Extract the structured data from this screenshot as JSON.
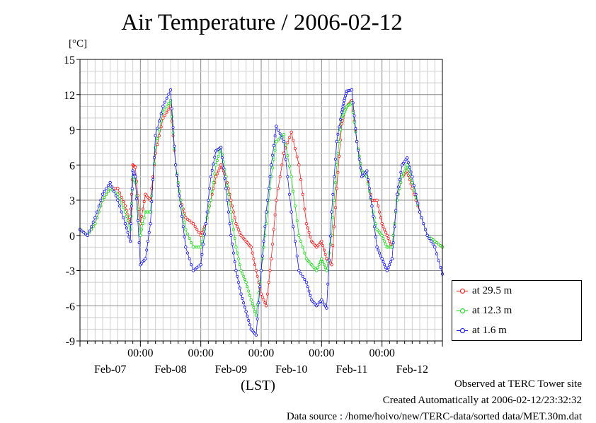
{
  "chart_data": {
    "type": "line",
    "title": "Air Temperature / 2006-02-12",
    "ylabel": "[°C]",
    "xlabel": "(LST)",
    "ylim": [
      -9,
      15
    ],
    "yticks": [
      15,
      12,
      9,
      6,
      3,
      0,
      -3,
      -6,
      -9
    ],
    "xlim_hours": [
      0,
      144
    ],
    "time_labels": [
      "00:00",
      "00:00",
      "00:00",
      "00:00",
      "00:00"
    ],
    "date_labels": [
      "Feb-07",
      "Feb-08",
      "Feb-09",
      "Feb-10",
      "Feb-11",
      "Feb-12"
    ],
    "grid": true,
    "legend_position": "bottom-right",
    "colors": {
      "at 29.5 m": "#ff0000",
      "at 12.3 m": "#00dd00",
      "at 1.6 m": "#0000ff"
    },
    "series": [
      {
        "name": "at 29.5 m",
        "x": [
          0,
          3,
          6,
          9,
          12,
          15,
          18,
          20,
          21,
          22,
          24,
          26,
          28,
          30,
          33,
          36,
          38,
          40,
          42,
          45,
          48,
          50,
          52,
          54,
          56,
          58,
          60,
          62,
          64,
          66,
          68,
          70,
          72,
          74,
          76,
          78,
          81,
          84,
          87,
          90,
          92,
          94,
          96,
          98,
          100,
          102,
          104,
          105,
          106,
          108,
          110,
          112,
          114,
          116,
          118,
          120,
          122,
          124,
          126,
          128,
          130,
          132,
          135,
          138,
          141,
          144
        ],
        "y": [
          0.5,
          0,
          1,
          3,
          4,
          4,
          2.5,
          1,
          6,
          5.8,
          1,
          3.5,
          3,
          7,
          10,
          11,
          6,
          3,
          1.5,
          1,
          0,
          1,
          3,
          5,
          6,
          5,
          3,
          1,
          0,
          -0.5,
          -1,
          -3,
          -5,
          -6,
          -2,
          3,
          7,
          8.8,
          6,
          1,
          -0.5,
          -1,
          -0.5,
          -2,
          -2.5,
          4,
          9.5,
          10.5,
          11,
          11.5,
          8,
          5.5,
          5,
          3,
          3,
          1,
          0,
          -1,
          3,
          5,
          5.5,
          4,
          2,
          0,
          -0.5,
          -1
        ]
      },
      {
        "name": "at 12.3 m",
        "x": [
          0,
          3,
          6,
          9,
          12,
          15,
          18,
          20,
          21,
          22,
          24,
          26,
          28,
          30,
          33,
          36,
          38,
          40,
          42,
          45,
          48,
          50,
          52,
          54,
          56,
          58,
          60,
          62,
          64,
          66,
          68,
          70,
          72,
          74,
          76,
          78,
          81,
          84,
          87,
          90,
          92,
          94,
          96,
          98,
          100,
          102,
          104,
          105,
          106,
          108,
          110,
          112,
          114,
          116,
          118,
          120,
          122,
          124,
          126,
          128,
          130,
          132,
          135,
          138,
          141,
          144
        ],
        "y": [
          0.5,
          0,
          1,
          3,
          4,
          3.5,
          2,
          0.5,
          5,
          4.5,
          0,
          2,
          2,
          7.5,
          10.5,
          11.5,
          6,
          3,
          0.5,
          -1,
          -1,
          1,
          3,
          6,
          7.5,
          5,
          2,
          -1,
          -3,
          -4,
          -5.5,
          -6.8,
          -3,
          1,
          5,
          8,
          8.6,
          5,
          0,
          -2,
          -2.5,
          -3,
          -2,
          -3,
          0,
          6,
          10,
          10.5,
          11,
          11.3,
          8,
          5.5,
          5,
          2.5,
          0.5,
          0,
          -1,
          -1,
          3,
          5,
          6,
          4.5,
          2,
          0,
          -0.5,
          -1
        ]
      },
      {
        "name": "at 1.6 m",
        "x": [
          0,
          3,
          6,
          9,
          12,
          15,
          18,
          20,
          21,
          22,
          24,
          26,
          28,
          30,
          33,
          36,
          38,
          40,
          42,
          45,
          48,
          50,
          52,
          54,
          56,
          58,
          60,
          62,
          64,
          66,
          68,
          70,
          72,
          74,
          76,
          78,
          81,
          84,
          87,
          90,
          92,
          94,
          96,
          98,
          100,
          102,
          104,
          105,
          106,
          108,
          110,
          112,
          114,
          116,
          118,
          120,
          122,
          124,
          126,
          128,
          130,
          132,
          135,
          138,
          141,
          144
        ],
        "y": [
          0.5,
          0,
          1.5,
          3.5,
          4.5,
          3,
          1,
          -0.5,
          5.5,
          5,
          -2.5,
          -2,
          1,
          8.5,
          11,
          12.4,
          6,
          2.5,
          -1,
          -3,
          -2.5,
          1,
          5,
          7.2,
          7.5,
          4,
          0,
          -3,
          -5,
          -6.5,
          -8,
          -8.5,
          -3,
          2,
          6,
          9.3,
          8,
          2,
          -3,
          -4,
          -5.5,
          -6,
          -5.5,
          -6.2,
          2,
          8,
          10.5,
          11.5,
          12.3,
          12.4,
          8,
          5,
          5.5,
          2.5,
          -1,
          -2,
          -3,
          -2,
          3.5,
          6,
          6.6,
          5,
          2,
          0,
          -1,
          -3.3
        ]
      }
    ]
  },
  "legend": {
    "items": [
      {
        "label": "at 29.5 m",
        "color": "#ff0000"
      },
      {
        "label": "at 12.3 m",
        "color": "#00dd00"
      },
      {
        "label": "at 1.6 m",
        "color": "#0000ff"
      }
    ]
  },
  "footer": {
    "line1": "Observed at TERC Tower site",
    "line2": "Created Automatically at 2006-02-12/23:32:32",
    "line3": "Data source : /home/hoivo/new/TERC-data/sorted  data/MET.30m.dat"
  }
}
